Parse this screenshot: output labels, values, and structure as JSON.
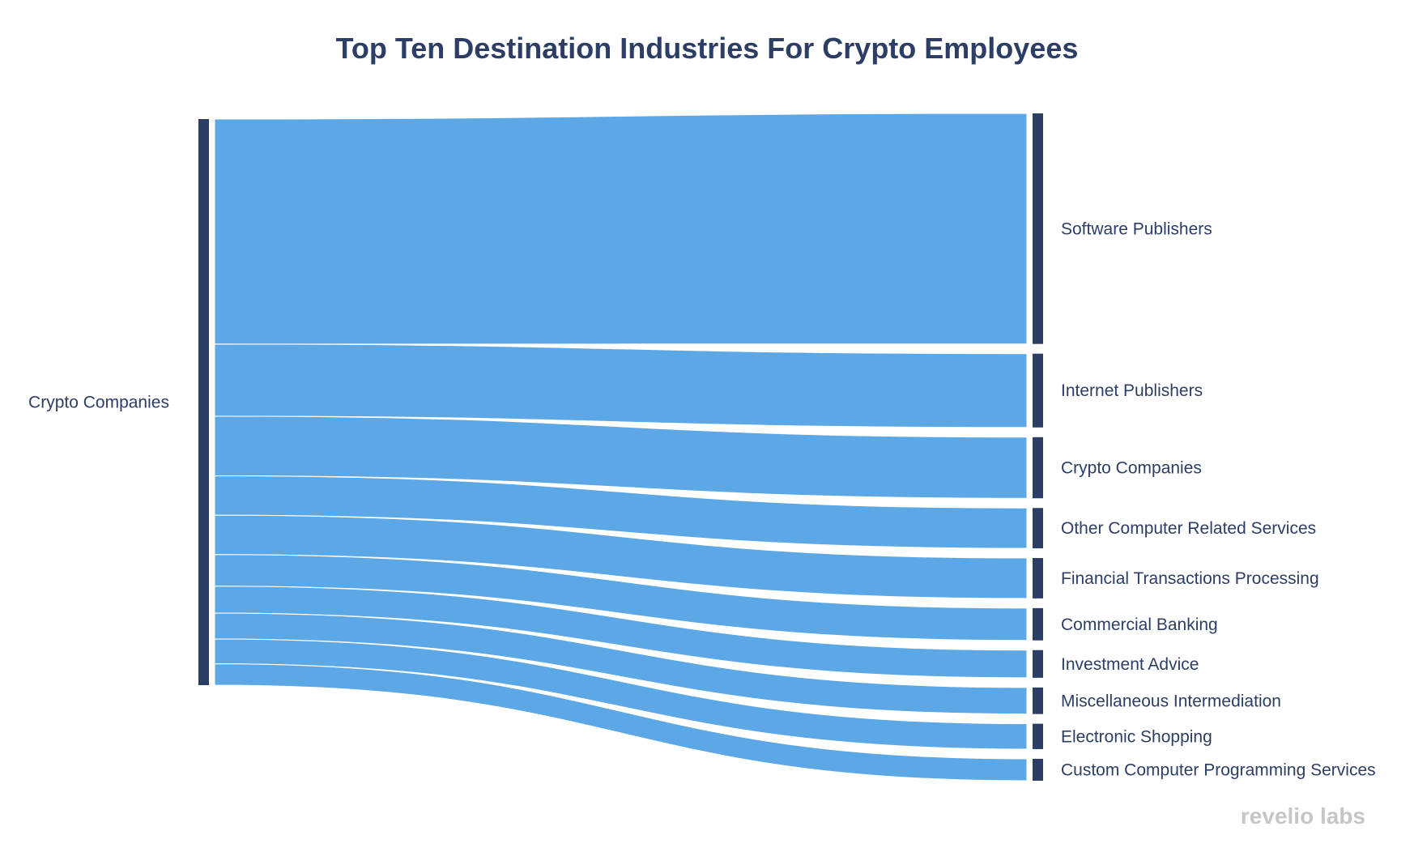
{
  "chart_data": {
    "type": "sankey",
    "title": "Top Ten Destination Industries For Crypto Employees",
    "source": {
      "label": "Crypto Companies"
    },
    "targets": [
      {
        "label": "Software Publishers",
        "value": 100
      },
      {
        "label": "Internet Publishers",
        "value": 32
      },
      {
        "label": "Crypto Companies",
        "value": 26.5
      },
      {
        "label": "Other Computer Related Services",
        "value": 17.5
      },
      {
        "label": "Financial Transactions Processing",
        "value": 17.5
      },
      {
        "label": "Commercial Banking",
        "value": 14
      },
      {
        "label": "Investment Advice",
        "value": 12
      },
      {
        "label": "Miscellaneous Intermediation",
        "value": 11.5
      },
      {
        "label": "Electronic Shopping",
        "value": 11
      },
      {
        "label": "Custom Computer Programming Services",
        "value": 9.5
      }
    ]
  },
  "branding": {
    "watermark": "revelio labs"
  },
  "colors": {
    "title": "#2c3e66",
    "label": "#2c3e66",
    "node": "#2b3f66",
    "link": "#5ca7e6",
    "watermark": "#c6c6c6"
  }
}
